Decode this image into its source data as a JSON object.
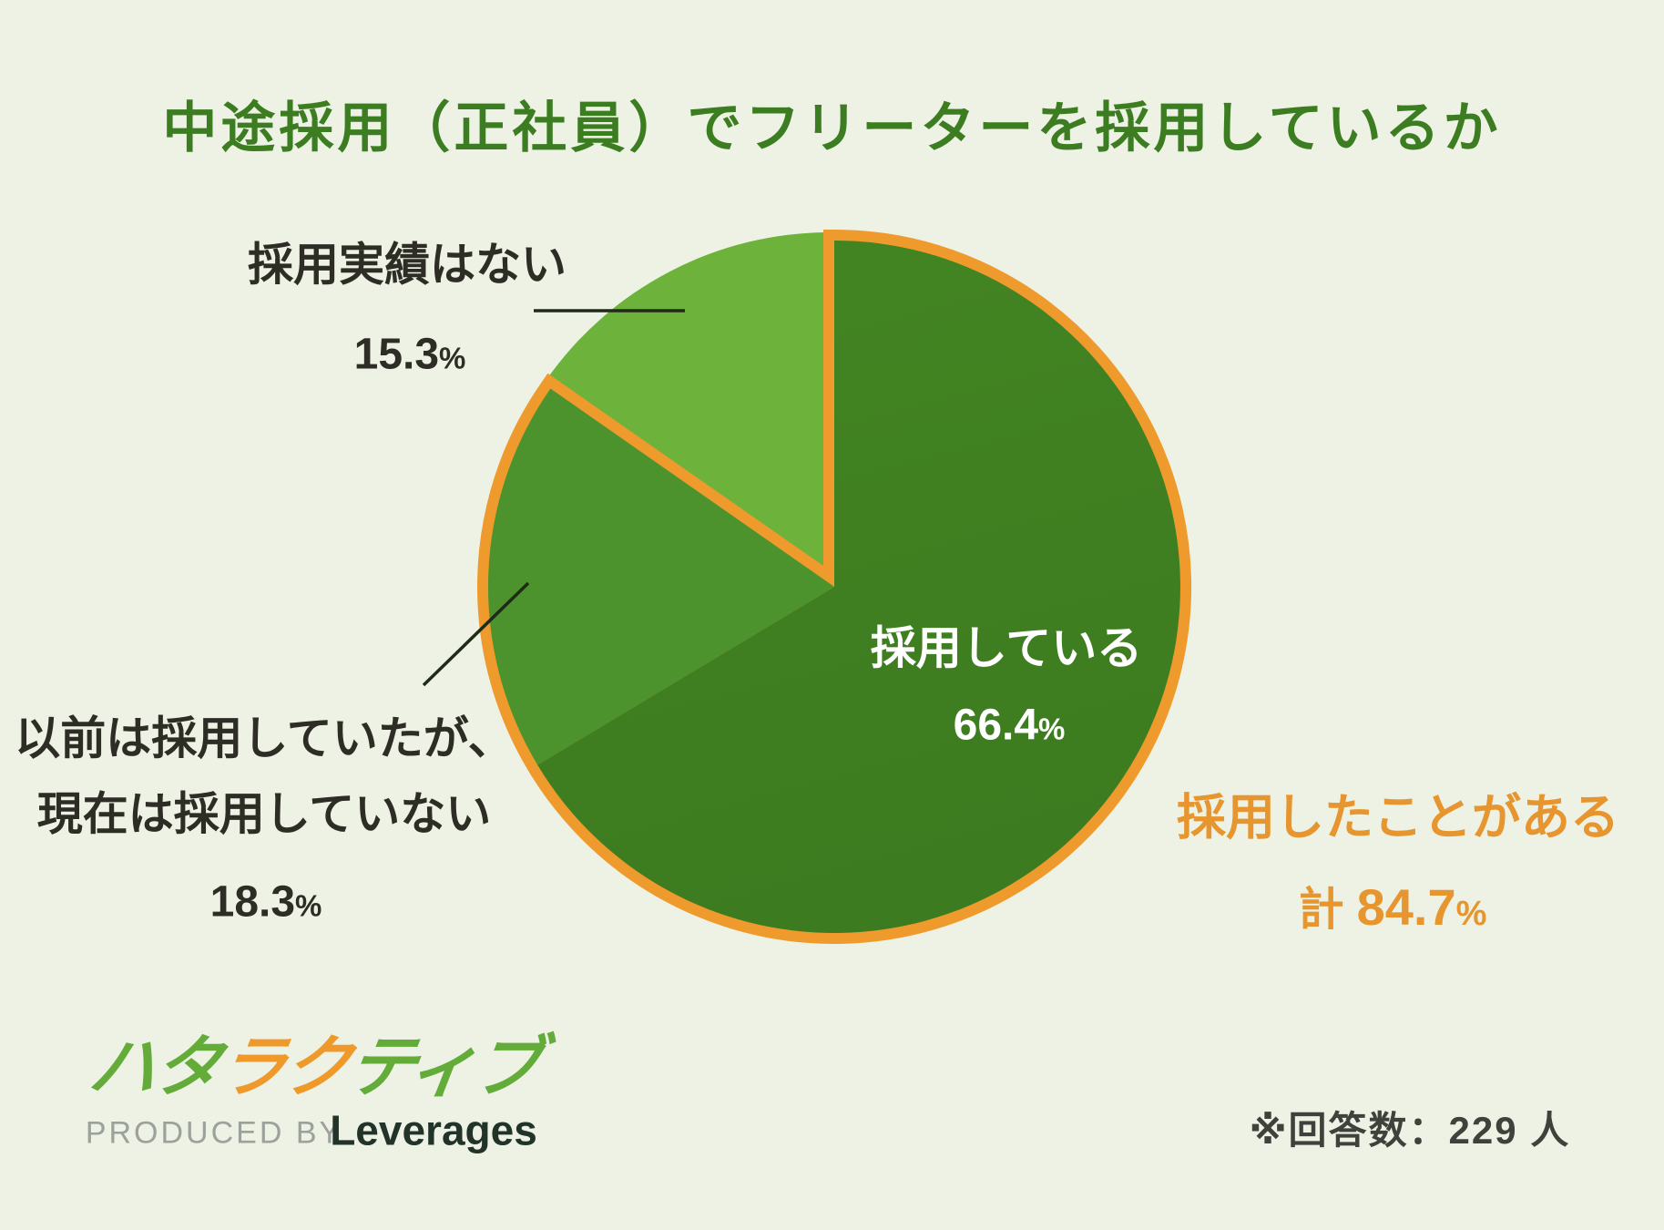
{
  "chart_data": {
    "type": "pie",
    "title": "中途採用（正社員）でフリーターを採用しているか",
    "unit": "%",
    "start_angle_deg": 0,
    "direction": "clockwise",
    "slices": [
      {
        "label": "採用している",
        "value": 66.4,
        "color": "#3d7b20"
      },
      {
        "label": "以前は採用していたが、現在は採用していない",
        "label_lines": [
          "以前は採用していたが、",
          "現在は採用していない"
        ],
        "value": 18.3,
        "color": "#4d932d"
      },
      {
        "label": "採用実績はない",
        "value": 15.3,
        "color": "#6db33b",
        "exploded": true
      }
    ],
    "annotation": {
      "text": "採用したことがある",
      "prefix": "計",
      "value": 84.7,
      "unit": "%",
      "color": "#e7952e",
      "covers_slices": [
        0,
        1
      ]
    },
    "note": "※回答数：229 人",
    "legend_position": "none",
    "grid": false
  },
  "logo": {
    "part1": "ハタ",
    "part2": "ラク",
    "part3": "ティブ",
    "produced_by": "PRODUCED BY",
    "company": "Leverages"
  },
  "colors": {
    "background": "#edf2e4",
    "title_green": "#3c7d21",
    "slice_hiring_top": "#438522",
    "slice_hiring_bottom": "#3d7b20",
    "slice_previously": "#4d932d",
    "slice_none": "#6db33b",
    "accent_orange": "#ee9a2c",
    "annotation_orange": "#e7952e",
    "label_dark": "#2d2d26",
    "white_text": "#ffffff",
    "note_gray": "#3f423c",
    "logo_green": "#63ac39",
    "logo_orange": "#ee9929",
    "produced_gray": "#9ba19b",
    "leverages_dark": "#223329"
  }
}
